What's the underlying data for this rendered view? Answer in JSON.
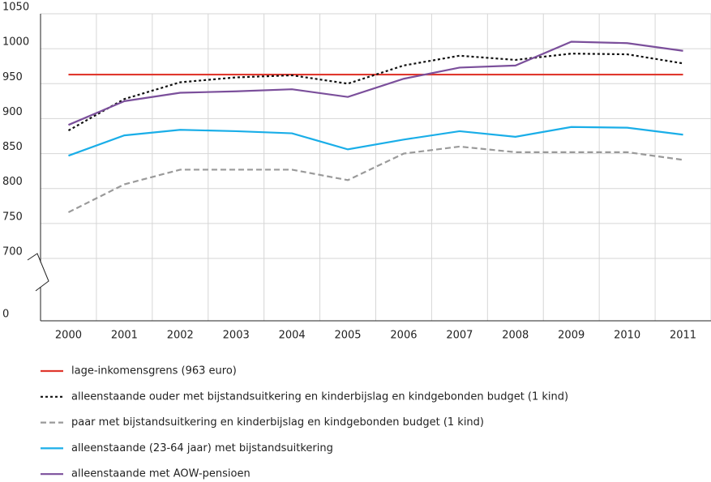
{
  "chart_data": {
    "type": "line",
    "categories": [
      "2000",
      "2001",
      "2002",
      "2003",
      "2004",
      "2005",
      "2006",
      "2007",
      "2008",
      "2009",
      "2010",
      "2011"
    ],
    "ylim": [
      0,
      1050
    ],
    "yticks": [
      0,
      700,
      750,
      800,
      850,
      900,
      950,
      1000,
      1050
    ],
    "y_axis_break": true,
    "grid": true,
    "series": [
      {
        "name": "lage-inkomensgrens (963 euro)",
        "color": "#e0382e",
        "style": "solid",
        "values": [
          963,
          963,
          963,
          963,
          963,
          963,
          963,
          963,
          963,
          963,
          963,
          963
        ]
      },
      {
        "name": "alleenstaande ouder met bijstandsuitkering en kinderbijslag en kindgebonden budget (1 kind)",
        "color": "#111111",
        "style": "dotted",
        "values": [
          883,
          928,
          952,
          959,
          962,
          950,
          976,
          990,
          984,
          993,
          992,
          979
        ]
      },
      {
        "name": "paar met bijstandsuitkering en kinderbijslag en kindgebonden budget (1 kind)",
        "color": "#9a9a9a",
        "style": "dashed",
        "values": [
          766,
          806,
          827,
          827,
          827,
          812,
          850,
          860,
          852,
          852,
          852,
          841
        ]
      },
      {
        "name": "alleenstaande (23-64 jaar) met bijstandsuitkering",
        "color": "#1aaee8",
        "style": "solid",
        "values": [
          847,
          876,
          884,
          882,
          879,
          856,
          870,
          882,
          874,
          888,
          887,
          877
        ]
      },
      {
        "name": "alleenstaande met AOW-pensioen",
        "color": "#7b4f9b",
        "style": "solid",
        "values": [
          891,
          925,
          937,
          939,
          942,
          931,
          957,
          973,
          976,
          1010,
          1008,
          997
        ]
      }
    ]
  }
}
